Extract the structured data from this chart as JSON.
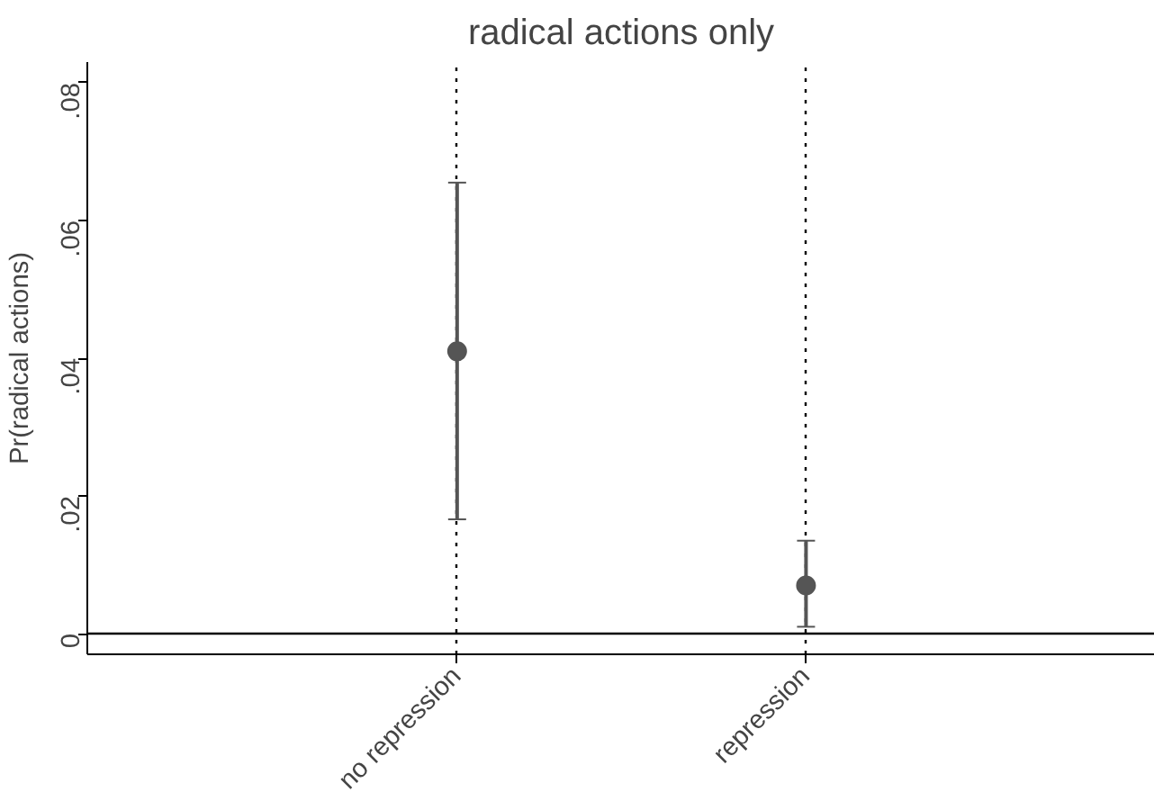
{
  "chart_data": {
    "type": "scatter",
    "title": "radical actions only",
    "ylabel": "Pr(radical actions)",
    "categories": [
      "no repression",
      "repression"
    ],
    "values": [
      0.041,
      0.007
    ],
    "color": "#555555",
    "marker": "circle",
    "errors": [
      [
        0.0166,
        0.0655
      ],
      [
        0.001,
        0.0135
      ]
    ],
    "ylim": [
      -0.003,
      0.083
    ],
    "yticks": [
      {
        "value": 0,
        "label": "0"
      },
      {
        "value": 0.02,
        "label": ".02"
      },
      {
        "value": 0.04,
        "label": ".04"
      },
      {
        "value": 0.06,
        "label": ".06"
      },
      {
        "value": 0.08,
        "label": ".08"
      }
    ],
    "grid": "x",
    "ref_lines": [
      {
        "axis": "y",
        "value": 0,
        "color": "#000000",
        "line_style": "solid"
      }
    ]
  }
}
